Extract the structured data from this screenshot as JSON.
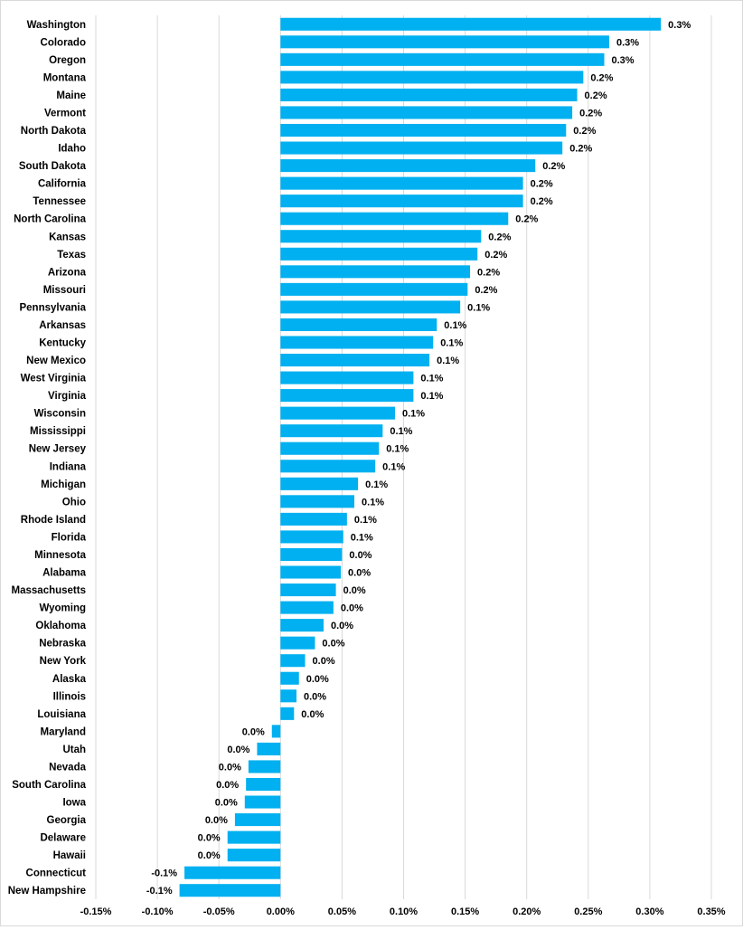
{
  "chart_data": {
    "type": "bar",
    "orientation": "horizontal",
    "title": "",
    "xlabel": "",
    "ylabel": "",
    "xlim": [
      -0.0015,
      0.0035
    ],
    "x_ticks": [
      "-0.15%",
      "-0.10%",
      "-0.05%",
      "0.00%",
      "0.05%",
      "0.10%",
      "0.15%",
      "0.20%",
      "0.25%",
      "0.30%",
      "0.35%"
    ],
    "grid": true,
    "legend": "none",
    "bar_color": "#00B0F0",
    "categories": [
      "Washington",
      "Colorado",
      "Oregon",
      "Montana",
      "Maine",
      "Vermont",
      "North Dakota",
      "Idaho",
      "South Dakota",
      "California",
      "Tennessee",
      "North Carolina",
      "Kansas",
      "Texas",
      "Arizona",
      "Missouri",
      "Pennsylvania",
      "Arkansas",
      "Kentucky",
      "New Mexico",
      "West Virginia",
      "Virginia",
      "Wisconsin",
      "Mississippi",
      "New Jersey",
      "Indiana",
      "Michigan",
      "Ohio",
      "Rhode Island",
      "Florida",
      "Minnesota",
      "Alabama",
      "Massachusetts",
      "Wyoming",
      "Oklahoma",
      "Nebraska",
      "New York",
      "Alaska",
      "Illinois",
      "Louisiana",
      "Maryland",
      "Utah",
      "Nevada",
      "South Carolina",
      "Iowa",
      "Georgia",
      "Delaware",
      "Hawaii",
      "Connecticut",
      "New Hampshire"
    ],
    "values": [
      0.00309,
      0.00267,
      0.00263,
      0.00246,
      0.00241,
      0.00237,
      0.00232,
      0.00229,
      0.00207,
      0.00197,
      0.00197,
      0.00185,
      0.00163,
      0.0016,
      0.00154,
      0.00152,
      0.00146,
      0.00127,
      0.00124,
      0.00121,
      0.00108,
      0.00108,
      0.00093,
      0.00083,
      0.0008,
      0.00077,
      0.00063,
      0.0006,
      0.00054,
      0.00051,
      0.0005,
      0.00049,
      0.00045,
      0.00043,
      0.00035,
      0.00028,
      0.0002,
      0.00015,
      0.00013,
      0.00011,
      -7e-05,
      -0.00019,
      -0.00026,
      -0.00028,
      -0.00029,
      -0.00037,
      -0.00043,
      -0.00043,
      -0.00078,
      -0.00082
    ],
    "data_labels": [
      "0.3%",
      "0.3%",
      "0.3%",
      "0.2%",
      "0.2%",
      "0.2%",
      "0.2%",
      "0.2%",
      "0.2%",
      "0.2%",
      "0.2%",
      "0.2%",
      "0.2%",
      "0.2%",
      "0.2%",
      "0.2%",
      "0.1%",
      "0.1%",
      "0.1%",
      "0.1%",
      "0.1%",
      "0.1%",
      "0.1%",
      "0.1%",
      "0.1%",
      "0.1%",
      "0.1%",
      "0.1%",
      "0.1%",
      "0.1%",
      "0.0%",
      "0.0%",
      "0.0%",
      "0.0%",
      "0.0%",
      "0.0%",
      "0.0%",
      "0.0%",
      "0.0%",
      "0.0%",
      "0.0%",
      "0.0%",
      "0.0%",
      "0.0%",
      "0.0%",
      "0.0%",
      "0.0%",
      "0.0%",
      "-0.1%",
      "-0.1%"
    ]
  }
}
